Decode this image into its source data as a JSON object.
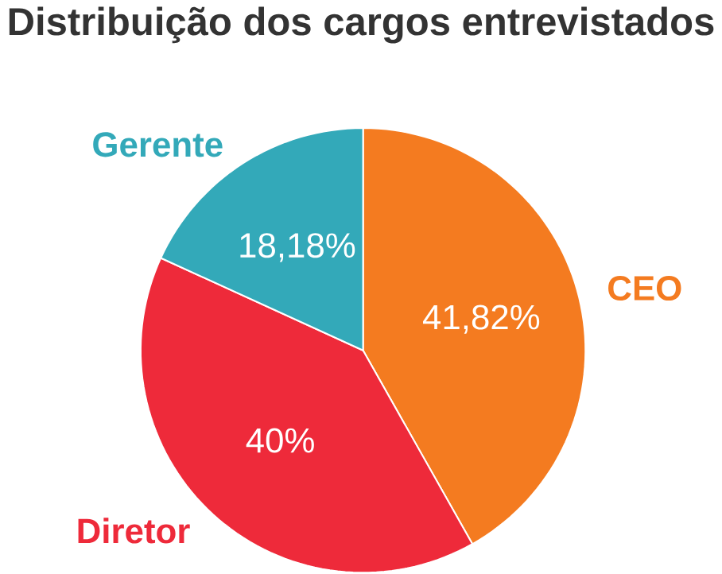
{
  "chart_data": {
    "type": "pie",
    "title": "Distribuição dos cargos entrevistados",
    "categories": [
      "CEO",
      "Diretor",
      "Gerente"
    ],
    "values": [
      41.82,
      40,
      18.18
    ],
    "value_labels": [
      "41,82%",
      "40%",
      "18,18%"
    ],
    "colors": [
      "#f47b20",
      "#ee2a3a",
      "#33a9b9"
    ]
  }
}
